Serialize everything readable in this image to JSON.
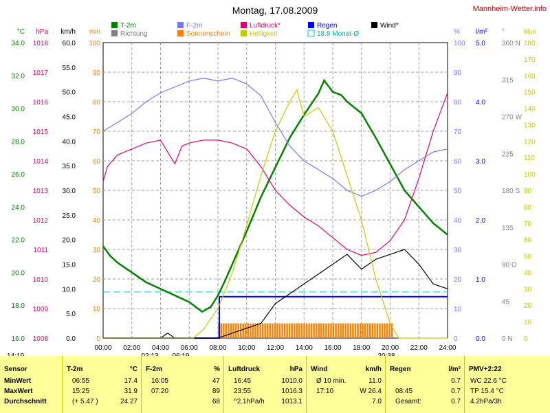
{
  "title": "Montag, 17.08.2009",
  "site": "Mannheim-Wetter.info",
  "colors": {
    "temp": "#008000",
    "humidity": "#7878ff",
    "pressure": "#e0006e",
    "sunshine": "#ff8000",
    "brightness": "#c8c800",
    "rain": "#0000ff",
    "wind": "#000000",
    "direction": "#808080",
    "grid": "#a0a0a0"
  },
  "legend": [
    {
      "key": "temp",
      "label": "T-2m",
      "type": "box"
    },
    {
      "key": "direction",
      "label": "Richtung",
      "type": "box"
    },
    {
      "key": "humidity",
      "label": "F-2m",
      "type": "box"
    },
    {
      "key": "sunshine",
      "label": "Sonnenschein",
      "type": "box"
    },
    {
      "key": "pressure",
      "label": "Luftdruck*",
      "type": "box"
    },
    {
      "key": "brightness",
      "label": "Helligkeit",
      "type": "box"
    },
    {
      "key": "rain",
      "label": "Regen",
      "type": "box"
    },
    {
      "key": "rain",
      "label": "18.8 Monat-Ø",
      "type": "outline"
    },
    {
      "key": "wind",
      "label": "Wind*",
      "type": "box"
    }
  ],
  "axes": {
    "x": {
      "min": 0,
      "max": 24,
      "ticks": [
        "00:00",
        "02:00",
        "04:00",
        "06:00",
        "08:00",
        "10:00",
        "12:00",
        "14:00",
        "16:00",
        "18:00",
        "20:00",
        "22:00",
        "24:00"
      ]
    },
    "temp": {
      "unit": "°C",
      "min": 16,
      "max": 34,
      "ticks": [
        "34.0",
        "32.0",
        "30.0",
        "28.0",
        "26.0",
        "24.0",
        "22.0",
        "20.0",
        "18.0",
        "16.0"
      ]
    },
    "pressure": {
      "unit": "hPa",
      "min": 1008,
      "max": 1018,
      "ticks": [
        "1018",
        "1017",
        "1016",
        "1015",
        "1014",
        "1013",
        "1012",
        "1011",
        "1010",
        "1009",
        "1008"
      ]
    },
    "wind": {
      "unit": "km/h",
      "min": 0,
      "max": 60,
      "ticks": [
        "60.0",
        "55.0",
        "50.0",
        "45.0",
        "40.0",
        "35.0",
        "30.0",
        "25.0",
        "20.0",
        "15.0",
        "10.0",
        "5.0",
        "0.0"
      ]
    },
    "sun": {
      "unit": "min",
      "min": 0,
      "max": 100,
      "ticks": [
        "100",
        "90",
        "80",
        "70",
        "60",
        "50",
        "40",
        "30",
        "20",
        "10",
        "0"
      ]
    },
    "humidity": {
      "unit": "%",
      "min": 0,
      "max": 100,
      "ticks": [
        "100",
        "90",
        "80",
        "70",
        "60",
        "50",
        "40",
        "30",
        "20",
        "10",
        "0"
      ]
    },
    "rain": {
      "unit": "l/m²",
      "min": 0,
      "max": 5,
      "ticks": [
        "5.0",
        "4.0",
        "3.0",
        "2.0",
        "1.0",
        "0.0"
      ]
    },
    "direction": {
      "unit": "°",
      "min": 0,
      "max": 360,
      "ticks": [
        "360 N",
        "315",
        "270 W",
        "225",
        "180 S",
        "135",
        "90 O",
        "45",
        "0 N"
      ]
    },
    "lux": {
      "unit": "klux",
      "min": 0,
      "max": 180,
      "ticks": [
        "180",
        "170",
        "160",
        "150",
        "140",
        "130",
        "120",
        "110",
        "100",
        "90",
        "80",
        "70",
        "60",
        "50",
        "40",
        "30",
        "20",
        "10",
        "0"
      ]
    }
  },
  "markers": {
    "sunrise": "06:19",
    "sunset": "20:38",
    "moonset": "02:13",
    "time_label": "14:19"
  },
  "chart_data": {
    "type": "line",
    "x_unit": "hours",
    "series": [
      {
        "name": "T-2m",
        "key": "temp",
        "points": [
          [
            0,
            21.6
          ],
          [
            0.5,
            21.0
          ],
          [
            1,
            20.6
          ],
          [
            2,
            20.0
          ],
          [
            3,
            19.4
          ],
          [
            4,
            19.0
          ],
          [
            5,
            18.6
          ],
          [
            6,
            18.2
          ],
          [
            6.9,
            17.6
          ],
          [
            7.5,
            17.9
          ],
          [
            8,
            18.6
          ],
          [
            8.5,
            19.5
          ],
          [
            9,
            20.5
          ],
          [
            10,
            22.5
          ],
          [
            11,
            24.6
          ],
          [
            12,
            26.4
          ],
          [
            13,
            28.2
          ],
          [
            14,
            29.6
          ],
          [
            15,
            30.9
          ],
          [
            15.4,
            31.7
          ],
          [
            16,
            31.0
          ],
          [
            16.6,
            30.8
          ],
          [
            17,
            30.4
          ],
          [
            18,
            29.7
          ],
          [
            19,
            28.2
          ],
          [
            20,
            26.6
          ],
          [
            21,
            25.0
          ],
          [
            22,
            24.0
          ],
          [
            23,
            23.0
          ],
          [
            24,
            22.3
          ]
        ]
      },
      {
        "name": "F-2m",
        "key": "humidity",
        "points": [
          [
            0,
            70
          ],
          [
            1,
            73
          ],
          [
            2,
            76
          ],
          [
            3,
            80
          ],
          [
            4,
            83
          ],
          [
            5,
            85
          ],
          [
            6,
            87
          ],
          [
            7,
            88
          ],
          [
            8,
            87
          ],
          [
            9,
            88
          ],
          [
            10,
            86
          ],
          [
            11,
            82
          ],
          [
            12,
            73
          ],
          [
            13,
            65
          ],
          [
            14,
            60
          ],
          [
            15,
            57
          ],
          [
            16,
            54
          ],
          [
            17,
            50
          ],
          [
            18,
            48
          ],
          [
            19,
            50
          ],
          [
            20,
            53
          ],
          [
            21,
            57
          ],
          [
            22,
            60
          ],
          [
            23,
            63
          ],
          [
            24,
            64
          ]
        ]
      },
      {
        "name": "Luftdruck*",
        "key": "pressure",
        "points": [
          [
            0,
            1013.3
          ],
          [
            0.3,
            1013.8
          ],
          [
            1,
            1014.2
          ],
          [
            2,
            1014.4
          ],
          [
            3,
            1014.6
          ],
          [
            4,
            1014.7
          ],
          [
            5,
            1013.9
          ],
          [
            5.5,
            1014.5
          ],
          [
            6,
            1014.6
          ],
          [
            7,
            1014.7
          ],
          [
            8,
            1014.7
          ],
          [
            9,
            1014.6
          ],
          [
            10,
            1014.4
          ],
          [
            11,
            1013.8
          ],
          [
            12,
            1013.0
          ],
          [
            13,
            1012.5
          ],
          [
            14,
            1012.1
          ],
          [
            15,
            1011.8
          ],
          [
            16,
            1011.4
          ],
          [
            17,
            1011.0
          ],
          [
            18,
            1010.8
          ],
          [
            19,
            1010.9
          ],
          [
            20,
            1011.3
          ],
          [
            21,
            1012.0
          ],
          [
            22,
            1013.4
          ],
          [
            23,
            1015.0
          ],
          [
            24,
            1016.3
          ]
        ]
      },
      {
        "name": "Wind*",
        "key": "wind",
        "points": [
          [
            0,
            0
          ],
          [
            4,
            0
          ],
          [
            4.5,
            1
          ],
          [
            5,
            0
          ],
          [
            8,
            0
          ],
          [
            9,
            1
          ],
          [
            10,
            2
          ],
          [
            11,
            3
          ],
          [
            12,
            7
          ],
          [
            13,
            9
          ],
          [
            14,
            11
          ],
          [
            15,
            13
          ],
          [
            16,
            15
          ],
          [
            17,
            17
          ],
          [
            18,
            14
          ],
          [
            19,
            16
          ],
          [
            20,
            17
          ],
          [
            21,
            18
          ],
          [
            22,
            15
          ],
          [
            23,
            11
          ],
          [
            24,
            10
          ]
        ]
      },
      {
        "name": "Helligkeit",
        "key": "brightness",
        "points": [
          [
            0,
            0
          ],
          [
            6.3,
            0
          ],
          [
            7,
            3
          ],
          [
            8,
            10
          ],
          [
            9,
            22
          ],
          [
            10,
            38
          ],
          [
            11,
            55
          ],
          [
            12,
            70
          ],
          [
            13,
            80
          ],
          [
            13.5,
            84
          ],
          [
            14,
            75
          ],
          [
            15,
            78
          ],
          [
            16,
            70
          ],
          [
            17,
            55
          ],
          [
            18,
            40
          ],
          [
            19,
            20
          ],
          [
            20,
            5
          ],
          [
            20.6,
            0
          ],
          [
            24,
            0
          ]
        ]
      }
    ],
    "rain_total": [
      [
        0,
        0
      ],
      [
        8.1,
        0
      ],
      [
        8.1,
        0.7
      ],
      [
        24,
        0.7
      ]
    ],
    "rain_month_avg": 0.78,
    "sunshine_minutes": {
      "start": 8.0,
      "end": 20.2,
      "value": 5
    }
  },
  "stats": {
    "rows": [
      "MinWert",
      "MaxWert",
      "Durchschnitt"
    ],
    "columns": [
      {
        "header": "Sensor",
        "unit": "",
        "cells": [
          "MinWert",
          "MaxWert",
          "Durchschnitt"
        ]
      },
      {
        "header": "T-2m",
        "unit": "°C",
        "cells": [
          [
            "06:55",
            "17.4"
          ],
          [
            "15:25",
            "31.9"
          ],
          [
            "(+ 5.47 )",
            "24.27"
          ]
        ]
      },
      {
        "header": "F-2m",
        "unit": "%",
        "cells": [
          [
            "16:05",
            "47"
          ],
          [
            "07:20",
            "89"
          ],
          [
            "",
            "68"
          ]
        ]
      },
      {
        "header": "Luftdruck",
        "unit": "hPa",
        "cells": [
          [
            "16:45",
            "1010.0"
          ],
          [
            "23:55",
            "1016.3"
          ],
          [
            "^2.1hPa/h",
            "1013.1"
          ]
        ]
      },
      {
        "header": "Wind",
        "unit": "km/h",
        "cells": [
          [
            "Ø 10 min.",
            "11.0"
          ],
          [
            "17:10",
            "W 26.4"
          ],
          [
            "",
            "7.0"
          ]
        ]
      },
      {
        "header": "Regen",
        "unit": "l/m²",
        "cells": [
          [
            "",
            "0.7"
          ],
          [
            "08:45",
            "0.7"
          ],
          [
            "Gesamt:",
            "0.7"
          ]
        ]
      },
      {
        "header": "PMV+2:22",
        "unit": "",
        "cells": [
          "WC 22.6 °C",
          "TP 15.4 °C",
          "4.2hPa/3h"
        ]
      }
    ]
  }
}
